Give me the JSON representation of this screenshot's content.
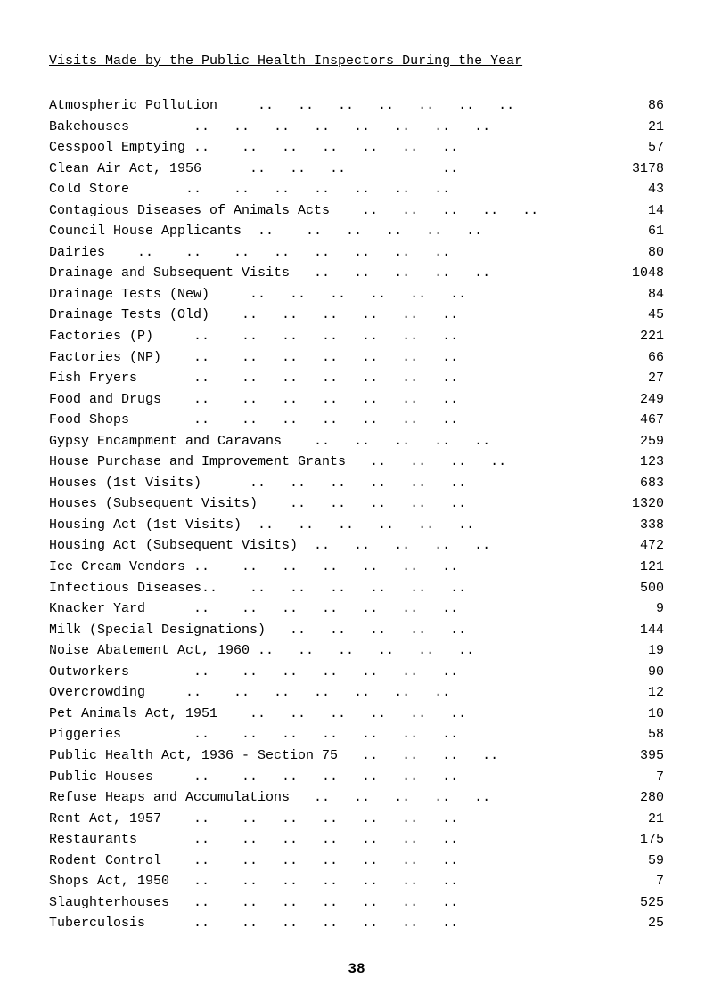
{
  "title": "Visits Made by the Public Health Inspectors During the Year",
  "rows": [
    {
      "label": "Atmospheric Pollution     ..   ..   ..   ..   ..   ..   ..",
      "value": "86"
    },
    {
      "label": "Bakehouses        ..   ..   ..   ..   ..   ..   ..   ..",
      "value": "21"
    },
    {
      "label": "Cesspool Emptying ..    ..   ..   ..   ..   ..   ..",
      "value": "57"
    },
    {
      "label": "Clean Air Act, 1956      ..   ..   ..            ..",
      "value": "3178"
    },
    {
      "label": "Cold Store       ..    ..   ..   ..   ..   ..   ..",
      "value": "43"
    },
    {
      "label": "Contagious Diseases of Animals Acts    ..   ..   ..   ..   ..",
      "value": "14"
    },
    {
      "label": "Council House Applicants  ..    ..   ..   ..   ..   ..",
      "value": "61"
    },
    {
      "label": "Dairies    ..    ..    ..   ..   ..   ..   ..   ..",
      "value": "80"
    },
    {
      "label": "Drainage and Subsequent Visits   ..   ..   ..   ..   ..",
      "value": "1048"
    },
    {
      "label": "Drainage Tests (New)     ..   ..   ..   ..   ..   ..",
      "value": "84"
    },
    {
      "label": "Drainage Tests (Old)    ..   ..   ..   ..   ..   ..",
      "value": "45"
    },
    {
      "label": "Factories (P)     ..    ..   ..   ..   ..   ..   ..",
      "value": "221"
    },
    {
      "label": "Factories (NP)    ..    ..   ..   ..   ..   ..   ..",
      "value": "66"
    },
    {
      "label": "Fish Fryers       ..    ..   ..   ..   ..   ..   ..",
      "value": "27"
    },
    {
      "label": "Food and Drugs    ..    ..   ..   ..   ..   ..   ..",
      "value": "249"
    },
    {
      "label": "Food Shops        ..    ..   ..   ..   ..   ..   ..",
      "value": "467"
    },
    {
      "label": "Gypsy Encampment and Caravans    ..   ..   ..   ..   ..",
      "value": "259"
    },
    {
      "label": "House Purchase and Improvement Grants   ..   ..   ..   ..",
      "value": "123"
    },
    {
      "label": "Houses (1st Visits)      ..   ..   ..   ..   ..   ..",
      "value": "683"
    },
    {
      "label": "Houses (Subsequent Visits)    ..   ..   ..   ..   ..",
      "value": "1320"
    },
    {
      "label": "Housing Act (1st Visits)  ..   ..   ..   ..   ..   ..",
      "value": "338"
    },
    {
      "label": "Housing Act (Subsequent Visits)  ..   ..   ..   ..   ..",
      "value": "472"
    },
    {
      "label": "Ice Cream Vendors ..    ..   ..   ..   ..   ..   ..",
      "value": "121"
    },
    {
      "label": "Infectious Diseases..    ..   ..   ..   ..   ..   ..",
      "value": "500"
    },
    {
      "label": "Knacker Yard      ..    ..   ..   ..   ..   ..   ..",
      "value": "9"
    },
    {
      "label": "Milk (Special Designations)   ..   ..   ..   ..   ..",
      "value": "144"
    },
    {
      "label": "Noise Abatement Act, 1960 ..   ..   ..   ..   ..   ..",
      "value": "19"
    },
    {
      "label": "Outworkers        ..    ..   ..   ..   ..   ..   ..",
      "value": "90"
    },
    {
      "label": "Overcrowding     ..    ..   ..   ..   ..   ..   ..",
      "value": "12"
    },
    {
      "label": "Pet Animals Act, 1951    ..   ..   ..   ..   ..   ..",
      "value": "10"
    },
    {
      "label": "Piggeries         ..    ..   ..   ..   ..   ..   ..",
      "value": "58"
    },
    {
      "label": "Public Health Act, 1936 - Section 75   ..   ..   ..   ..",
      "value": "395"
    },
    {
      "label": "Public Houses     ..    ..   ..   ..   ..   ..   ..",
      "value": "7"
    },
    {
      "label": "Refuse Heaps and Accumulations   ..   ..   ..   ..   ..",
      "value": "280"
    },
    {
      "label": "Rent Act, 1957    ..    ..   ..   ..   ..   ..   ..",
      "value": "21"
    },
    {
      "label": "Restaurants       ..    ..   ..   ..   ..   ..   ..",
      "value": "175"
    },
    {
      "label": "Rodent Control    ..    ..   ..   ..   ..   ..   ..",
      "value": "59"
    },
    {
      "label": "Shops Act, 1950   ..    ..   ..   ..   ..   ..   ..",
      "value": "7"
    },
    {
      "label": "Slaughterhouses   ..    ..   ..   ..   ..   ..   ..",
      "value": "525"
    },
    {
      "label": "Tuberculosis      ..    ..   ..   ..   ..   ..   ..",
      "value": "25"
    }
  ],
  "page_number": "38"
}
